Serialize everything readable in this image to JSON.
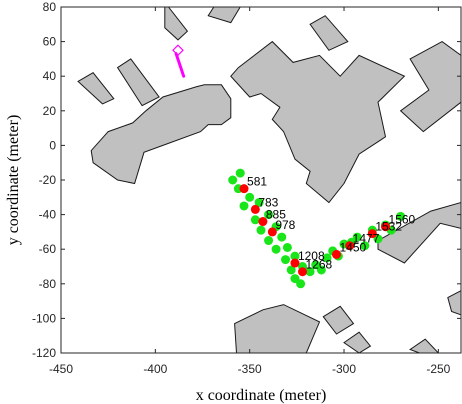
{
  "chart_data": {
    "type": "scatter",
    "xlabel": "x coordinate (meter)",
    "ylabel": "y coordinate (meter)",
    "xlim": [
      -450,
      -238
    ],
    "ylim": [
      -120,
      80
    ],
    "xticks": [
      -450,
      -400,
      -350,
      -300,
      -250
    ],
    "yticks": [
      -120,
      -100,
      -80,
      -60,
      -40,
      -20,
      0,
      20,
      40,
      60,
      80
    ],
    "grid": false,
    "colors": {
      "building_fill": "#c0c0c0",
      "building_edge": "#1a1a1a",
      "green": "#19e619",
      "red": "#ff0000",
      "path": "#ff00ff"
    },
    "buildings": [
      [
        [
          -395,
          80
        ],
        [
          -393,
          80
        ],
        [
          -383,
          66
        ],
        [
          -388,
          61
        ],
        [
          -395,
          68
        ]
      ],
      [
        [
          -420,
          45
        ],
        [
          -413,
          50
        ],
        [
          -398,
          28
        ],
        [
          -407,
          23
        ]
      ],
      [
        [
          -369,
          80
        ],
        [
          -355,
          80
        ],
        [
          -360,
          71
        ],
        [
          -372,
          75
        ]
      ],
      [
        [
          -441,
          37
        ],
        [
          -433,
          42
        ],
        [
          -422,
          27
        ],
        [
          -428,
          24
        ]
      ],
      [
        [
          -374,
          35
        ],
        [
          -365,
          35
        ],
        [
          -360,
          27
        ],
        [
          -360,
          16
        ],
        [
          -365,
          12
        ],
        [
          -372,
          12
        ],
        [
          -376,
          8
        ],
        [
          -396,
          0
        ],
        [
          -406,
          -4
        ],
        [
          -411,
          -22
        ],
        [
          -420,
          -20
        ],
        [
          -433,
          -10
        ],
        [
          -434,
          -3
        ],
        [
          -425,
          8
        ],
        [
          -412,
          13
        ],
        [
          -405,
          20
        ],
        [
          -396,
          28
        ],
        [
          -378,
          34
        ]
      ],
      [
        [
          -356,
          45
        ],
        [
          -338,
          60
        ],
        [
          -327,
          48
        ],
        [
          -313,
          52
        ],
        [
          -302,
          40
        ],
        [
          -292,
          52
        ],
        [
          -268,
          40
        ],
        [
          -282,
          25
        ],
        [
          -278,
          5
        ],
        [
          -292,
          -5
        ],
        [
          -300,
          -22
        ],
        [
          -308,
          -33
        ],
        [
          -320,
          -22
        ],
        [
          -318,
          -15
        ],
        [
          -326,
          -8
        ],
        [
          -332,
          8
        ],
        [
          -338,
          15
        ],
        [
          -334,
          22
        ],
        [
          -344,
          30
        ],
        [
          -350,
          28
        ],
        [
          -360,
          40
        ]
      ],
      [
        [
          -318,
          70
        ],
        [
          -310,
          75
        ],
        [
          -298,
          60
        ],
        [
          -308,
          55
        ]
      ],
      [
        [
          -265,
          50
        ],
        [
          -248,
          60
        ],
        [
          -238,
          52
        ],
        [
          -238,
          25
        ],
        [
          -258,
          8
        ],
        [
          -270,
          20
        ],
        [
          -255,
          32
        ]
      ],
      [
        [
          -282,
          -55
        ],
        [
          -254,
          -38
        ],
        [
          -238,
          -33
        ],
        [
          -238,
          -48
        ],
        [
          -249,
          -45
        ],
        [
          -268,
          -68
        ],
        [
          -282,
          -60
        ]
      ],
      [
        [
          -357,
          -120
        ],
        [
          -320,
          -120
        ],
        [
          -313,
          -102
        ],
        [
          -332,
          -92
        ],
        [
          -343,
          -95
        ],
        [
          -358,
          -103
        ]
      ],
      [
        [
          -311,
          -99
        ],
        [
          -302,
          -93
        ],
        [
          -295,
          -103
        ],
        [
          -304,
          -109
        ]
      ],
      [
        [
          -300,
          -114
        ],
        [
          -292,
          -108
        ],
        [
          -286,
          -116
        ],
        [
          -292,
          -120
        ]
      ],
      [
        [
          -265,
          -118
        ],
        [
          -257,
          -112
        ],
        [
          -250,
          -120
        ],
        [
          -260,
          -120
        ]
      ],
      [
        [
          -245,
          -88
        ],
        [
          -238,
          -84
        ],
        [
          -238,
          -98
        ],
        [
          -243,
          -96
        ]
      ]
    ],
    "green_points": [
      {
        "x": -359,
        "y": -20
      },
      {
        "x": -355,
        "y": -16
      },
      {
        "x": -356,
        "y": -25
      },
      {
        "x": -350,
        "y": -30
      },
      {
        "x": -353,
        "y": -35
      },
      {
        "x": -345,
        "y": -33
      },
      {
        "x": -347,
        "y": -43
      },
      {
        "x": -340,
        "y": -40
      },
      {
        "x": -344,
        "y": -49
      },
      {
        "x": -336,
        "y": -47
      },
      {
        "x": -340,
        "y": -55
      },
      {
        "x": -333,
        "y": -53
      },
      {
        "x": -336,
        "y": -60
      },
      {
        "x": -330,
        "y": -59
      },
      {
        "x": -331,
        "y": -66
      },
      {
        "x": -326,
        "y": -64
      },
      {
        "x": -328,
        "y": -72
      },
      {
        "x": -322,
        "y": -70
      },
      {
        "x": -326,
        "y": -77
      },
      {
        "x": -318,
        "y": -73
      },
      {
        "x": -323,
        "y": -80
      },
      {
        "x": -315,
        "y": -69
      },
      {
        "x": -309,
        "y": -65
      },
      {
        "x": -312,
        "y": -72
      },
      {
        "x": -306,
        "y": -61
      },
      {
        "x": -300,
        "y": -57
      },
      {
        "x": -303,
        "y": -64
      },
      {
        "x": -296,
        "y": -56
      },
      {
        "x": -293,
        "y": -53
      },
      {
        "x": -289,
        "y": -58
      },
      {
        "x": -285,
        "y": -49
      },
      {
        "x": -282,
        "y": -54
      },
      {
        "x": -278,
        "y": -46
      },
      {
        "x": -275,
        "y": -49
      },
      {
        "x": -270,
        "y": -41
      }
    ],
    "red_points": [
      {
        "x": -353,
        "y": -25,
        "label": "581"
      },
      {
        "x": -347,
        "y": -37,
        "label": "783"
      },
      {
        "x": -343,
        "y": -44,
        "label": "885"
      },
      {
        "x": -338,
        "y": -50,
        "label": "978"
      },
      {
        "x": -326,
        "y": -68,
        "label": "1208"
      },
      {
        "x": -322,
        "y": -73,
        "label": "1268"
      },
      {
        "x": -304,
        "y": -63,
        "label": "1450"
      },
      {
        "x": -297,
        "y": -58,
        "label": "1477"
      },
      {
        "x": -285,
        "y": -51,
        "label": "1532"
      },
      {
        "x": -278,
        "y": -47,
        "label": "1560"
      }
    ],
    "path_line": [
      {
        "x": -389,
        "y": 53
      },
      {
        "x": -385,
        "y": 40
      }
    ],
    "path_marker": {
      "x": -388,
      "y": 55
    }
  }
}
